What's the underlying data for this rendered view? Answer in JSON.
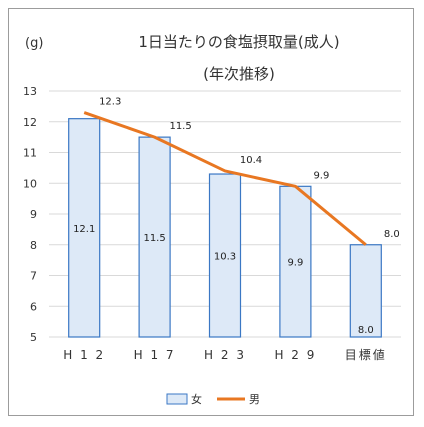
{
  "chart_data": {
    "type": "bar",
    "title": "1日当たりの食塩摂取量(成人)",
    "subtitle": "(年次推移)",
    "ylabel": "(g)",
    "xlabel": "",
    "categories": [
      "H12",
      "H17",
      "H23",
      "H29",
      "目標値"
    ],
    "category_labels": [
      "H 1 2",
      "H 1 7",
      "H 2 3",
      "H 2 9",
      "目標値"
    ],
    "ylim": [
      5,
      13
    ],
    "yticks": [
      5,
      6,
      7,
      8,
      9,
      10,
      11,
      12,
      13
    ],
    "grid": true,
    "legend_position": "bottom",
    "series": [
      {
        "name": "男",
        "kind": "line",
        "color": "#e87722",
        "values": [
          12.3,
          11.5,
          10.4,
          9.9,
          8.0
        ],
        "labels": [
          "12.3",
          "11.5",
          "10.4",
          "9.9",
          "8.0"
        ]
      },
      {
        "name": "女",
        "kind": "bar",
        "color": "#dde9f7",
        "edge_color": "#3a77c4",
        "values": [
          12.1,
          11.5,
          10.3,
          9.9,
          8.0
        ],
        "labels": [
          "12.1",
          "11.5",
          "10.3",
          "9.9",
          "8.0"
        ]
      }
    ]
  }
}
